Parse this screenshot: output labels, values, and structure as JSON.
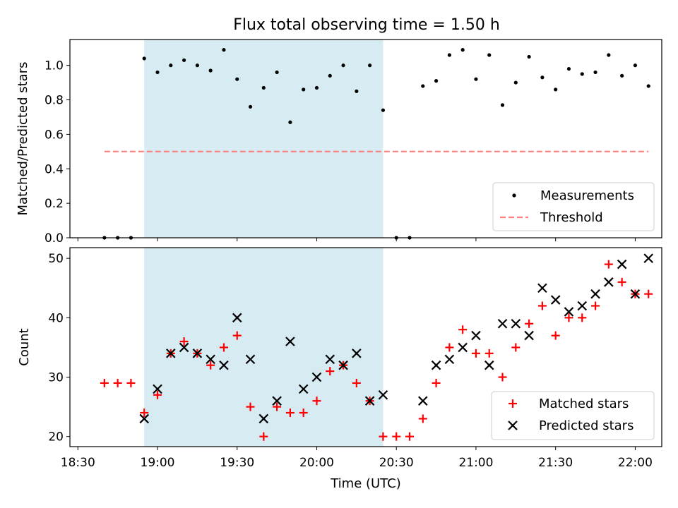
{
  "title": "Flux total observing time = 1.50 h",
  "shade_color": "#add8e6",
  "chart_data": [
    {
      "type": "scatter",
      "ylabel": "Matched/Predicted stars",
      "xlim": [
        "18:27",
        "22:10"
      ],
      "ylim": [
        0,
        1.15
      ],
      "yticks": [
        0.0,
        0.2,
        0.4,
        0.6,
        0.8,
        1.0
      ],
      "ytick_labels": [
        "0.0",
        "0.2",
        "0.4",
        "0.6",
        "0.8",
        "1.0"
      ],
      "shaded_span": [
        "18:55",
        "20:25"
      ],
      "legend_position": "lower right",
      "series": [
        {
          "name": "Measurements",
          "marker": "dot",
          "color": "#000000",
          "x": [
            "18:40",
            "18:45",
            "18:50",
            "18:55",
            "19:00",
            "19:05",
            "19:10",
            "19:15",
            "19:20",
            "19:25",
            "19:30",
            "19:35",
            "19:40",
            "19:45",
            "19:50",
            "19:55",
            "20:00",
            "20:05",
            "20:10",
            "20:15",
            "20:20",
            "20:25",
            "20:30",
            "20:35",
            "20:40",
            "20:45",
            "20:50",
            "20:55",
            "21:00",
            "21:05",
            "21:10",
            "21:15",
            "21:20",
            "21:25",
            "21:30",
            "21:35",
            "21:40",
            "21:45",
            "21:50",
            "21:55",
            "22:00",
            "22:05",
            "22:10"
          ],
          "y": [
            0.0,
            0.0,
            0.0,
            1.04,
            0.96,
            1.0,
            1.03,
            1.0,
            0.97,
            1.09,
            0.92,
            0.76,
            0.87,
            0.96,
            0.67,
            0.86,
            0.87,
            0.94,
            1.0,
            0.85,
            1.0,
            0.74,
            0.0,
            0.0,
            0.88,
            0.91,
            1.06,
            1.09,
            0.92,
            1.06,
            0.77,
            0.9,
            1.05,
            0.93,
            0.86,
            0.98,
            0.95,
            0.96,
            1.06,
            0.94,
            1.0,
            0.88,
            null
          ]
        },
        {
          "name": "Threshold",
          "line": "dashed",
          "color": "#ff7f7f",
          "x": [
            "18:40",
            "22:05"
          ],
          "y": [
            0.5,
            0.5
          ]
        }
      ]
    },
    {
      "type": "scatter",
      "xlabel": "Time (UTC)",
      "ylabel": "Count",
      "xlim": [
        "18:27",
        "22:10"
      ],
      "ylim": [
        18.3,
        51.8
      ],
      "xticks": [
        "18:30",
        "19:00",
        "19:30",
        "20:00",
        "20:30",
        "21:00",
        "21:30",
        "22:00"
      ],
      "yticks": [
        20,
        30,
        40,
        50
      ],
      "ytick_labels": [
        "20",
        "30",
        "40",
        "50"
      ],
      "shaded_span": [
        "18:55",
        "20:25"
      ],
      "legend_position": "lower right",
      "series": [
        {
          "name": "Matched stars",
          "marker": "plus",
          "color": "#ff0000",
          "x": [
            "18:40",
            "18:45",
            "18:50",
            "18:55",
            "19:00",
            "19:05",
            "19:10",
            "19:15",
            "19:20",
            "19:25",
            "19:30",
            "19:35",
            "19:40",
            "19:45",
            "19:50",
            "19:55",
            "20:00",
            "20:05",
            "20:10",
            "20:15",
            "20:20",
            "20:25",
            "20:30",
            "20:35",
            "20:40",
            "20:45",
            "20:50",
            "20:55",
            "21:00",
            "21:05",
            "21:10",
            "21:15",
            "21:20",
            "21:25",
            "21:30",
            "21:35",
            "21:40",
            "21:45",
            "21:50",
            "21:55",
            "22:00",
            "22:05"
          ],
          "y": [
            29,
            29,
            29,
            24,
            27,
            34,
            36,
            34,
            32,
            35,
            37,
            25,
            20,
            25,
            24,
            24,
            26,
            31,
            32,
            29,
            26,
            20,
            20,
            20,
            23,
            29,
            35,
            38,
            34,
            34,
            30,
            35,
            39,
            42,
            37,
            40,
            40,
            42,
            49,
            46,
            44,
            44
          ]
        },
        {
          "name": "Predicted stars",
          "marker": "x",
          "color": "#000000",
          "x": [
            "18:55",
            "19:00",
            "19:05",
            "19:10",
            "19:15",
            "19:20",
            "19:25",
            "19:30",
            "19:35",
            "19:40",
            "19:45",
            "19:50",
            "19:55",
            "20:00",
            "20:05",
            "20:10",
            "20:15",
            "20:20",
            "20:25",
            "20:40",
            "20:45",
            "20:50",
            "20:55",
            "21:00",
            "21:05",
            "21:10",
            "21:15",
            "21:20",
            "21:25",
            "21:30",
            "21:35",
            "21:40",
            "21:45",
            "21:50",
            "21:55",
            "22:00",
            "22:05"
          ],
          "y": [
            23,
            28,
            34,
            35,
            34,
            33,
            32,
            40,
            33,
            23,
            26,
            36,
            28,
            30,
            33,
            32,
            34,
            26,
            27,
            26,
            32,
            33,
            35,
            37,
            32,
            39,
            39,
            37,
            45,
            43,
            41,
            42,
            44,
            46,
            49,
            44,
            50
          ]
        }
      ]
    }
  ]
}
